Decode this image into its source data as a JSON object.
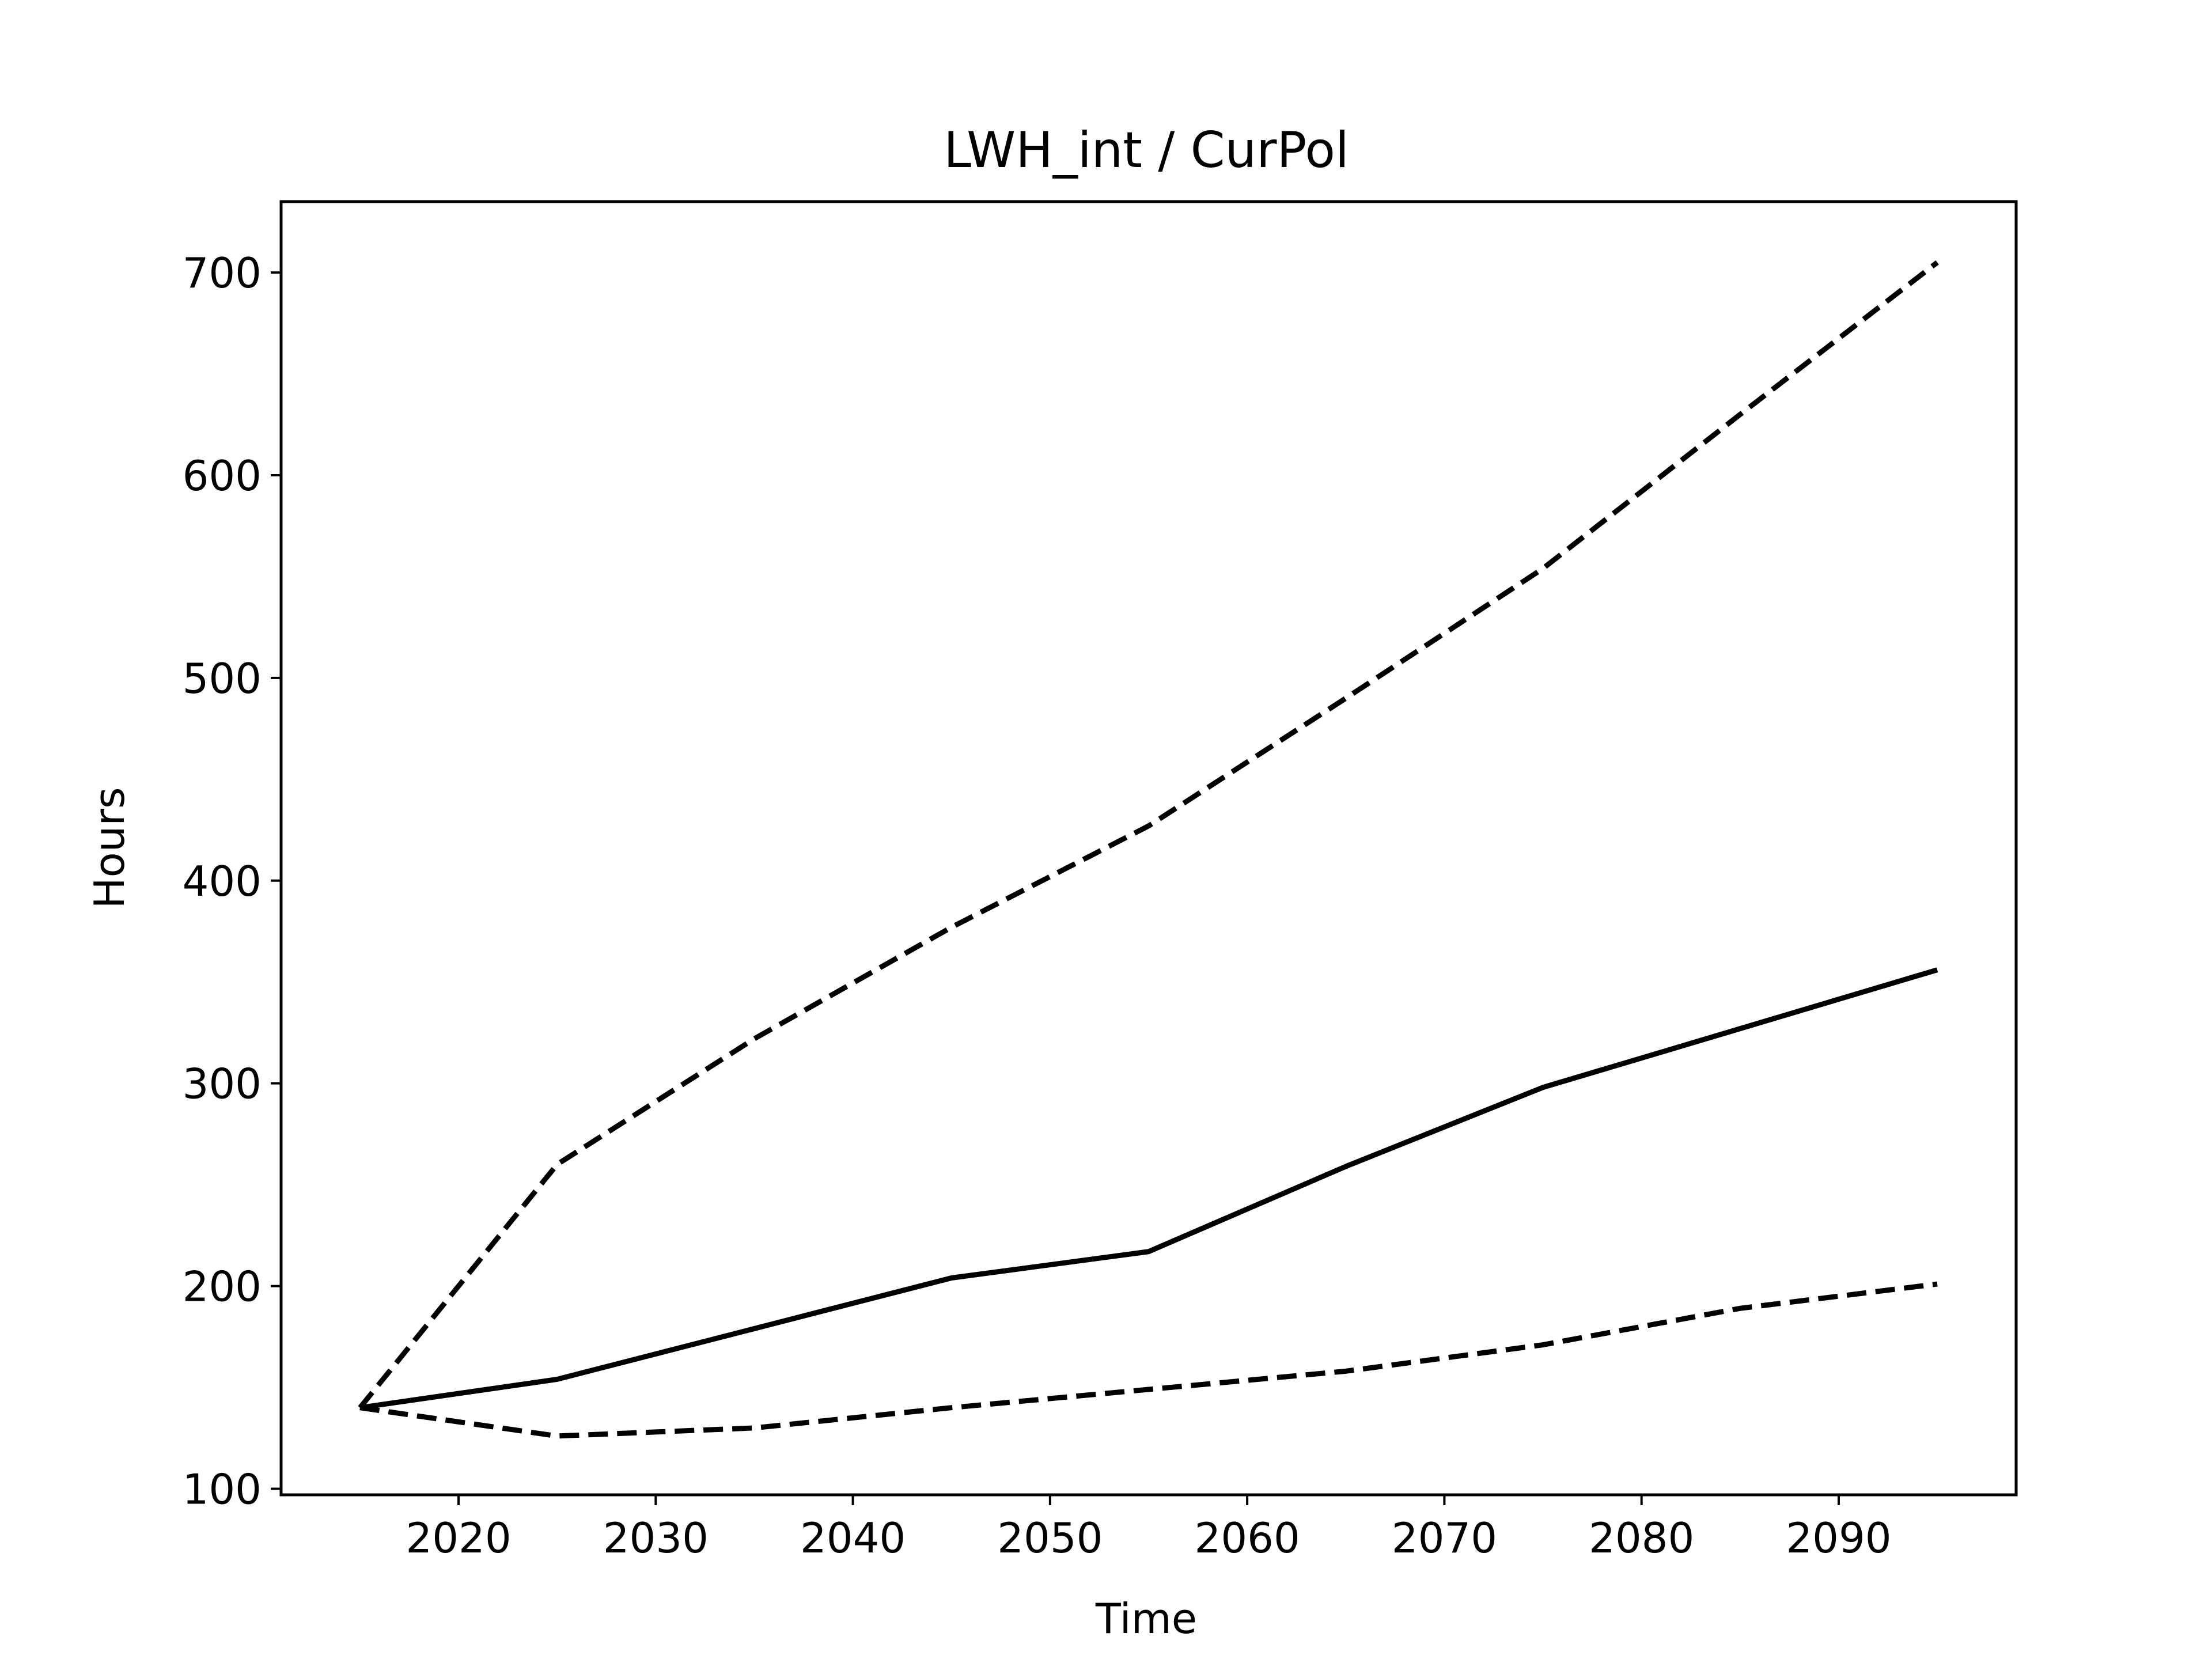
{
  "chart_data": {
    "type": "line",
    "title": "LWH_int / CurPol",
    "xlabel": "Time",
    "ylabel": "Hours",
    "xlim": [
      2011,
      2099
    ],
    "ylim": [
      97,
      735
    ],
    "xticks": [
      2020,
      2030,
      2040,
      2050,
      2060,
      2070,
      2080,
      2090
    ],
    "yticks": [
      100,
      200,
      300,
      400,
      500,
      600,
      700
    ],
    "grid": false,
    "legend": "none",
    "series": [
      {
        "style": "solid",
        "color": "#000000",
        "x": [
          2015,
          2025,
          2035,
          2045,
          2055,
          2065,
          2075,
          2085,
          2095
        ],
        "y": [
          140,
          154,
          179,
          204,
          217,
          259,
          298,
          327,
          356
        ]
      },
      {
        "style": "dashed",
        "color": "#000000",
        "x": [
          2015,
          2025,
          2035,
          2045,
          2055,
          2065,
          2075,
          2085,
          2095
        ],
        "y": [
          140,
          260,
          322,
          377,
          427,
          490,
          554,
          630,
          705
        ]
      },
      {
        "style": "dashed",
        "color": "#000000",
        "x": [
          2015,
          2025,
          2035,
          2045,
          2055,
          2065,
          2075,
          2085,
          2095
        ],
        "y": [
          140,
          126,
          130,
          140,
          149,
          158,
          171,
          189,
          201
        ]
      }
    ]
  }
}
